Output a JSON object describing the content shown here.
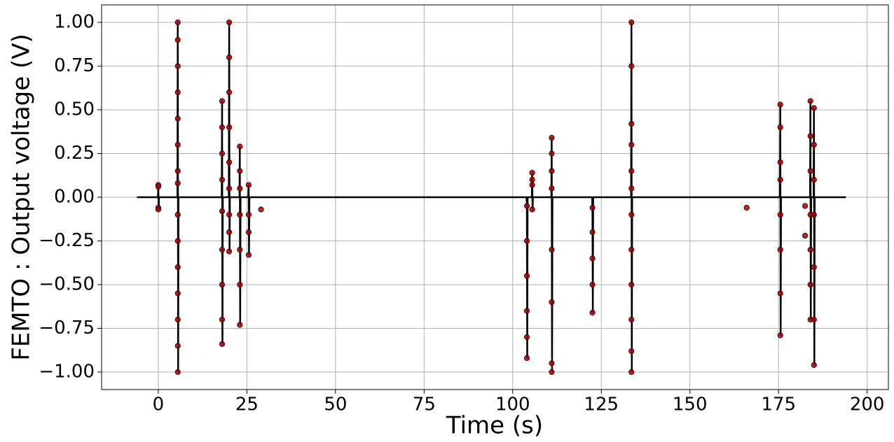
{
  "chart_data": {
    "type": "line",
    "xlabel": "Time (s)",
    "ylabel": "FEMTO : Output voltage (V)",
    "xlim": [
      -16,
      206
    ],
    "ylim": [
      -1.1,
      1.1
    ],
    "xticks": [
      0,
      25,
      50,
      75,
      100,
      125,
      150,
      175,
      200
    ],
    "yticks": [
      {
        "value": -1,
        "label": "−1.00"
      },
      {
        "value": -0.75,
        "label": "−0.75"
      },
      {
        "value": -0.5,
        "label": "−0.50"
      },
      {
        "value": -0.25,
        "label": "−0.25"
      },
      {
        "value": 0,
        "label": "0.00"
      },
      {
        "value": 0.25,
        "label": "0.25"
      },
      {
        "value": 0.5,
        "label": "0.50"
      },
      {
        "value": 0.75,
        "label": "0.75"
      },
      {
        "value": 1,
        "label": "1.00"
      }
    ],
    "grid": true,
    "series": [
      {
        "color": "#000000",
        "linestyle": "-",
        "x": [
          -6,
          -0.1,
          0,
          0.1,
          0.2,
          5.4,
          5.5,
          5.6,
          5.7,
          17.9,
          18,
          18.1,
          18.2,
          19.9,
          20,
          20.1,
          20.2,
          22.9,
          23,
          23.1,
          23.2,
          25.4,
          25.5,
          25.6,
          25.7,
          103.9,
          104,
          104.1,
          104.2,
          105.4,
          105.5,
          105.6,
          105.7,
          110.9,
          111,
          111.1,
          111.2,
          122.4,
          122.5,
          122.6,
          122.7,
          133.4,
          133.5,
          133.6,
          133.7,
          175.4,
          175.5,
          175.6,
          175.7,
          183.9,
          184,
          184.1,
          184.2,
          184.9,
          185,
          185.1,
          185.2,
          194
        ],
        "values": [
          0,
          0,
          0.07,
          -0.07,
          0,
          0,
          1.0,
          -1.0,
          0,
          0,
          0.55,
          -0.84,
          0,
          0,
          1.0,
          -0.31,
          0,
          0,
          0.29,
          -0.73,
          0,
          0,
          0.07,
          -0.33,
          0,
          0,
          -0.05,
          -0.92,
          0,
          0,
          0.14,
          -0.07,
          0,
          0,
          0.34,
          -1.0,
          0,
          0,
          -0.06,
          -0.66,
          0,
          0,
          1.0,
          -1.0,
          0,
          0,
          0.53,
          -0.79,
          0,
          0,
          0.55,
          -0.7,
          0,
          0,
          0.51,
          -0.96,
          0,
          0
        ]
      },
      {
        "color": "#b00000",
        "linestyle": "none",
        "marker": "o",
        "x": [
          0,
          0,
          0,
          0,
          5.5,
          5.5,
          5.5,
          5.5,
          5.5,
          5.5,
          5.5,
          5.5,
          5.5,
          5.5,
          5.5,
          5.5,
          5.5,
          5.5,
          5.5,
          18,
          18,
          18,
          18,
          18,
          18,
          18,
          18,
          18,
          20,
          20,
          20,
          20,
          20,
          20,
          20,
          20,
          20,
          23,
          23,
          23,
          23,
          23,
          23,
          23,
          25.5,
          25.5,
          25.5,
          25.5,
          29,
          104,
          104,
          104,
          104,
          104,
          104,
          105.5,
          105.5,
          105.5,
          105.5,
          111,
          111,
          111,
          111,
          111,
          111,
          111,
          111,
          122.5,
          122.5,
          122.5,
          122.5,
          122.5,
          133.5,
          133.5,
          133.5,
          133.5,
          133.5,
          133.5,
          133.5,
          133.5,
          133.5,
          133.5,
          133.5,
          133.5,
          166,
          175.5,
          175.5,
          175.5,
          175.5,
          175.5,
          175.5,
          175.5,
          175.5,
          182.5,
          182.5,
          184,
          184,
          184,
          184,
          184,
          184,
          184,
          185,
          185,
          185,
          185,
          185,
          185,
          185
        ],
        "values": [
          0.07,
          0.06,
          -0.06,
          -0.07,
          1.0,
          0.9,
          0.75,
          0.6,
          0.45,
          0.3,
          0.15,
          0.08,
          -0.1,
          -0.25,
          -0.4,
          -0.55,
          -0.7,
          -0.85,
          -1.0,
          0.55,
          0.4,
          0.25,
          0.1,
          -0.08,
          -0.3,
          -0.5,
          -0.7,
          -0.84,
          1.0,
          0.8,
          0.6,
          0.4,
          0.2,
          0.05,
          -0.1,
          -0.2,
          -0.31,
          0.29,
          0.15,
          0.05,
          -0.1,
          -0.3,
          -0.5,
          -0.73,
          0.07,
          -0.1,
          -0.2,
          -0.33,
          -0.07,
          -0.05,
          -0.25,
          -0.45,
          -0.65,
          -0.8,
          -0.92,
          0.14,
          0.1,
          0.07,
          -0.07,
          0.34,
          0.25,
          0.15,
          0.05,
          -0.3,
          -0.6,
          -0.95,
          -1.0,
          -0.06,
          -0.2,
          -0.35,
          -0.5,
          -0.66,
          1.0,
          0.75,
          0.42,
          0.3,
          0.15,
          0.05,
          -0.1,
          -0.3,
          -0.5,
          -0.7,
          -0.88,
          -1.0,
          -0.06,
          0.53,
          0.4,
          0.2,
          0.1,
          -0.1,
          -0.3,
          -0.55,
          -0.79,
          -0.05,
          -0.22,
          0.55,
          0.35,
          0.15,
          -0.1,
          -0.3,
          -0.5,
          -0.7,
          0.51,
          0.3,
          0.1,
          -0.1,
          -0.4,
          -0.7,
          -0.96
        ]
      }
    ]
  }
}
